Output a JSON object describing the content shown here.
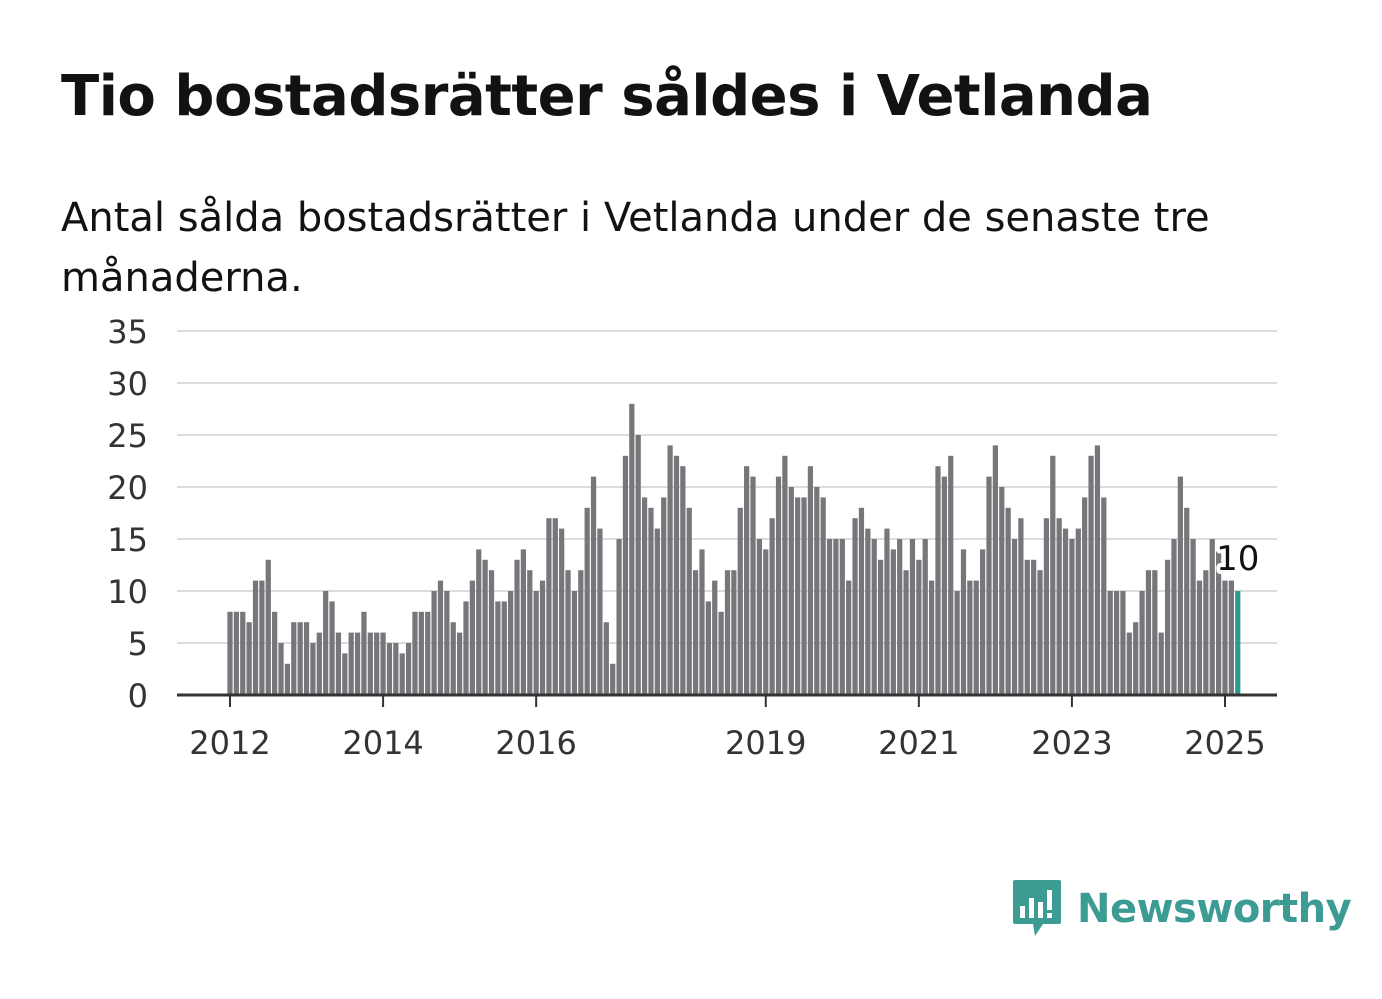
{
  "title": "Tio bostadsrätter såldes i Vetlanda",
  "subtitle": "Antal sålda bostadsrätter i Vetlanda under de senaste tre månaderna.",
  "logo": {
    "text": "Newsworthy",
    "icon": "newsworthy-bar-chart-icon",
    "color": "#3c9c94"
  },
  "chart_data": {
    "type": "bar",
    "title": "Tio bostadsrätter såldes i Vetlanda",
    "subtitle": "Antal sålda bostadsrätter i Vetlanda under de senaste tre månaderna.",
    "xlabel": "",
    "ylabel": "",
    "ylim": [
      0,
      35
    ],
    "yticks": [
      0,
      5,
      10,
      15,
      20,
      25,
      30,
      35
    ],
    "xticks": [
      "2012",
      "2014",
      "2016",
      "2019",
      "2021",
      "2023",
      "2025"
    ],
    "grid": true,
    "bar_color": "#77777b",
    "highlight_color": "#2a9d8f",
    "highlight_label": "10",
    "start": "2012-01",
    "end": "2025-01",
    "values": [
      8,
      8,
      8,
      7,
      11,
      11,
      13,
      8,
      5,
      3,
      7,
      7,
      7,
      5,
      6,
      10,
      9,
      6,
      4,
      6,
      6,
      8,
      6,
      6,
      6,
      5,
      5,
      4,
      5,
      8,
      8,
      8,
      10,
      11,
      10,
      7,
      6,
      9,
      11,
      14,
      13,
      12,
      9,
      9,
      10,
      13,
      14,
      12,
      10,
      11,
      17,
      17,
      16,
      12,
      10,
      12,
      18,
      21,
      16,
      7,
      3,
      15,
      23,
      28,
      25,
      19,
      18,
      16,
      19,
      24,
      23,
      22,
      18,
      12,
      14,
      9,
      11,
      8,
      12,
      12,
      18,
      22,
      21,
      15,
      14,
      17,
      21,
      23,
      20,
      19,
      19,
      22,
      20,
      19,
      15,
      15,
      15,
      11,
      17,
      18,
      16,
      15,
      13,
      16,
      14,
      15,
      12,
      15,
      13,
      15,
      11,
      22,
      21,
      23,
      10,
      14,
      11,
      11,
      14,
      21,
      24,
      20,
      18,
      15,
      17,
      13,
      13,
      12,
      17,
      23,
      17,
      16,
      15,
      16,
      19,
      23,
      24,
      19,
      10,
      10,
      10,
      6,
      7,
      10,
      12,
      12,
      6,
      13,
      15,
      21,
      18,
      15,
      11,
      12,
      15,
      14,
      11,
      11,
      10
    ]
  }
}
